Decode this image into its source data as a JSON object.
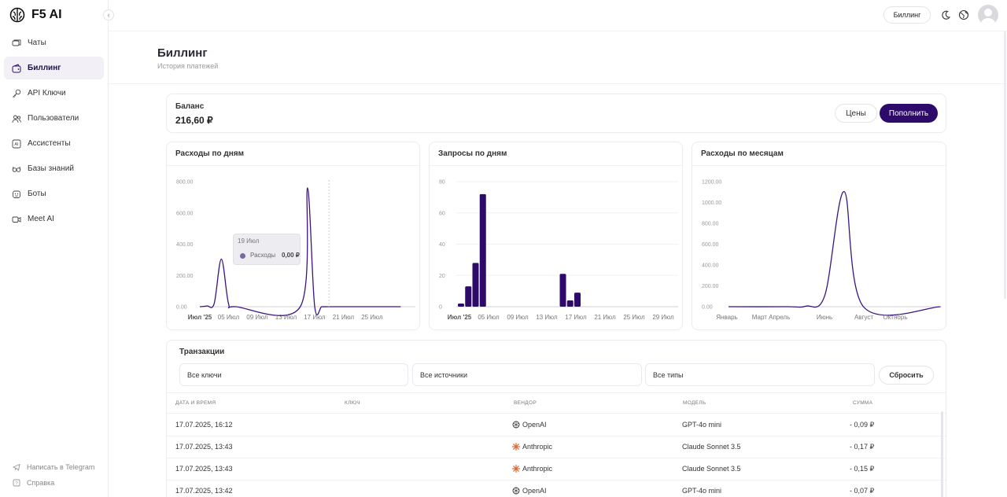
{
  "app": {
    "name": "F5 AI"
  },
  "sidebar": {
    "items": [
      {
        "label": "Чаты",
        "icon": "chats-icon"
      },
      {
        "label": "Биллинг",
        "icon": "wallet-icon",
        "active": true
      },
      {
        "label": "API Ключи",
        "icon": "key-icon"
      },
      {
        "label": "Пользователи",
        "icon": "users-icon"
      },
      {
        "label": "Ассистенты",
        "icon": "ai-assistant-icon"
      },
      {
        "label": "Базы знаний",
        "icon": "glasses-icon"
      },
      {
        "label": "Боты",
        "icon": "bot-icon"
      },
      {
        "label": "Meet AI",
        "icon": "video-icon"
      }
    ],
    "bottom": [
      {
        "label": "Написать в Telegram",
        "icon": "telegram-icon"
      },
      {
        "label": "Справка",
        "icon": "help-icon"
      }
    ]
  },
  "topbar": {
    "billing_label": "Биллинг"
  },
  "page": {
    "title": "Биллинг",
    "subtitle": "История платежей"
  },
  "balance": {
    "label": "Баланс",
    "value": "216,60 ₽",
    "prices_label": "Цены",
    "topup_label": "Пополнить"
  },
  "charts": {
    "daily_spend": {
      "title": "Расходы по дням"
    },
    "daily_requests": {
      "title": "Запросы по дням"
    },
    "monthly_spend": {
      "title": "Расходы по месяцам"
    },
    "tooltip": {
      "date": "19 Июл",
      "series": "Расходы",
      "value": "0,00 ₽"
    }
  },
  "chart_data": [
    {
      "type": "area",
      "title": "Расходы по дням",
      "x": [
        "Июл '25",
        "05 Июл",
        "09 Июл",
        "13 Июл",
        "17 Июл",
        "21 Июл",
        "25 Июл"
      ],
      "y_ticks": [
        "0.00",
        "200.00",
        "400.00",
        "600.00",
        "800.00"
      ],
      "ylim": [
        0,
        800
      ],
      "points": [
        {
          "x": "Июл '25",
          "y": 0
        },
        {
          "x": "02 Июл",
          "y": 5
        },
        {
          "x": "03 Июл",
          "y": 20
        },
        {
          "x": "04 Июл",
          "y": 305
        },
        {
          "x": "05 Июл",
          "y": 20
        },
        {
          "x": "06 Июл",
          "y": 0
        },
        {
          "x": "15 Июл",
          "y": 0
        },
        {
          "x": "16 Июл",
          "y": 760
        },
        {
          "x": "17 Июл",
          "y": 5
        },
        {
          "x": "18 Июл",
          "y": 0
        },
        {
          "x": "19 Июл",
          "y": 0
        },
        {
          "x": "25 Июл",
          "y": 0
        },
        {
          "x": "29 Июл",
          "y": 0
        }
      ],
      "color": "#3a1580"
    },
    {
      "type": "bar",
      "title": "Запросы по дням",
      "x": [
        "Июл '25",
        "05 Июл",
        "09 Июл",
        "13 Июл",
        "17 Июл",
        "21 Июл",
        "25 Июл",
        "29 Июл"
      ],
      "y_ticks": [
        "0",
        "20",
        "40",
        "60",
        "80"
      ],
      "ylim": [
        0,
        80
      ],
      "bars": [
        {
          "day": 1,
          "value": 2
        },
        {
          "day": 2,
          "value": 13
        },
        {
          "day": 3,
          "value": 28
        },
        {
          "day": 4,
          "value": 72
        },
        {
          "day": 15,
          "value": 21
        },
        {
          "day": 16,
          "value": 4
        },
        {
          "day": 17,
          "value": 9
        }
      ],
      "color": "#2e0b6b"
    },
    {
      "type": "line",
      "title": "Расходы по месяцам",
      "x": [
        "Январь",
        "Март",
        "Апрель",
        "Июнь",
        "Август",
        "Октябрь"
      ],
      "y_ticks": [
        "0.00",
        "200.00",
        "400.00",
        "600.00",
        "800.00",
        "1000.00",
        "1200.00"
      ],
      "ylim": [
        0,
        1200
      ],
      "points": [
        {
          "x": "Январь",
          "y": 0
        },
        {
          "x": "Апрель",
          "y": 0
        },
        {
          "x": "Май",
          "y": 5
        },
        {
          "x": "Июнь",
          "y": 110
        },
        {
          "x": "Июль",
          "y": 1105
        },
        {
          "x": "Август",
          "y": 0
        },
        {
          "x": "Декабрь",
          "y": 0
        }
      ],
      "color": "#3a1580"
    }
  ],
  "transactions": {
    "title": "Транзакции",
    "filters": {
      "keys": "Все ключи",
      "sources": "Все источники",
      "types": "Все типы",
      "reset": "Сбросить"
    },
    "columns": {
      "datetime": "ДАТА И ВРЕМЯ",
      "key": "КЛЮЧ",
      "vendor": "ВЕНДОР",
      "model": "МОДЕЛЬ",
      "amount": "СУММА"
    },
    "rows": [
      {
        "datetime": "17.07.2025, 16:12",
        "key": "",
        "vendor": "OpenAI",
        "vendor_icon": "openai-icon",
        "model": "GPT-4o mini",
        "amount": "- 0,09 ₽"
      },
      {
        "datetime": "17.07.2025, 13:43",
        "key": "",
        "vendor": "Anthropic",
        "vendor_icon": "anthropic-icon",
        "model": "Claude Sonnet 3.5",
        "amount": "- 0,17 ₽"
      },
      {
        "datetime": "17.07.2025, 13:43",
        "key": "",
        "vendor": "Anthropic",
        "vendor_icon": "anthropic-icon",
        "model": "Claude Sonnet 3.5",
        "amount": "- 0,15 ₽"
      },
      {
        "datetime": "17.07.2025, 13:42",
        "key": "",
        "vendor": "OpenAI",
        "vendor_icon": "openai-icon",
        "model": "GPT-4o mini",
        "amount": "- 0,07 ₽"
      }
    ]
  }
}
